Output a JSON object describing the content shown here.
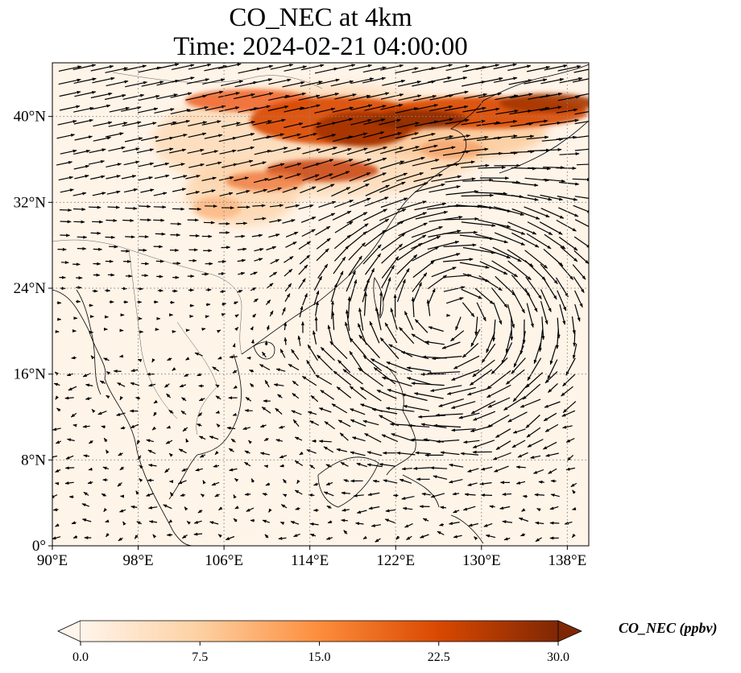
{
  "title": {
    "line1": "CO_NEC at 4km",
    "line2": "Time: 2024-02-21 04:00:00"
  },
  "map": {
    "lon_range": [
      90,
      140
    ],
    "lat_range": [
      0,
      45
    ],
    "lat_ticks": [
      {
        "value": 0,
        "label": "0°"
      },
      {
        "value": 8,
        "label": "8°N"
      },
      {
        "value": 16,
        "label": "16°N"
      },
      {
        "value": 24,
        "label": "24°N"
      },
      {
        "value": 32,
        "label": "32°N"
      },
      {
        "value": 40,
        "label": "40°N"
      }
    ],
    "lon_ticks": [
      {
        "value": 90,
        "label": "90°E"
      },
      {
        "value": 98,
        "label": "98°E"
      },
      {
        "value": 106,
        "label": "106°E"
      },
      {
        "value": 114,
        "label": "114°E"
      },
      {
        "value": 122,
        "label": "122°E"
      },
      {
        "value": 130,
        "label": "130°E"
      },
      {
        "value": 138,
        "label": "138°E"
      }
    ],
    "gridlines": "dotted",
    "colormap": [
      "#fff5eb",
      "#fdd0a2",
      "#fd8d3c",
      "#d94801",
      "#7f2704"
    ],
    "vortex_center": {
      "lon": 127,
      "lat": 22
    }
  },
  "colorbar": {
    "label": "CO_NEC (ppbv)",
    "min": 0,
    "max": 30,
    "ticks": [
      "0.0",
      "7.5",
      "15.0",
      "22.5",
      "30.0"
    ],
    "extend": "both",
    "orientation": "horizontal"
  }
}
